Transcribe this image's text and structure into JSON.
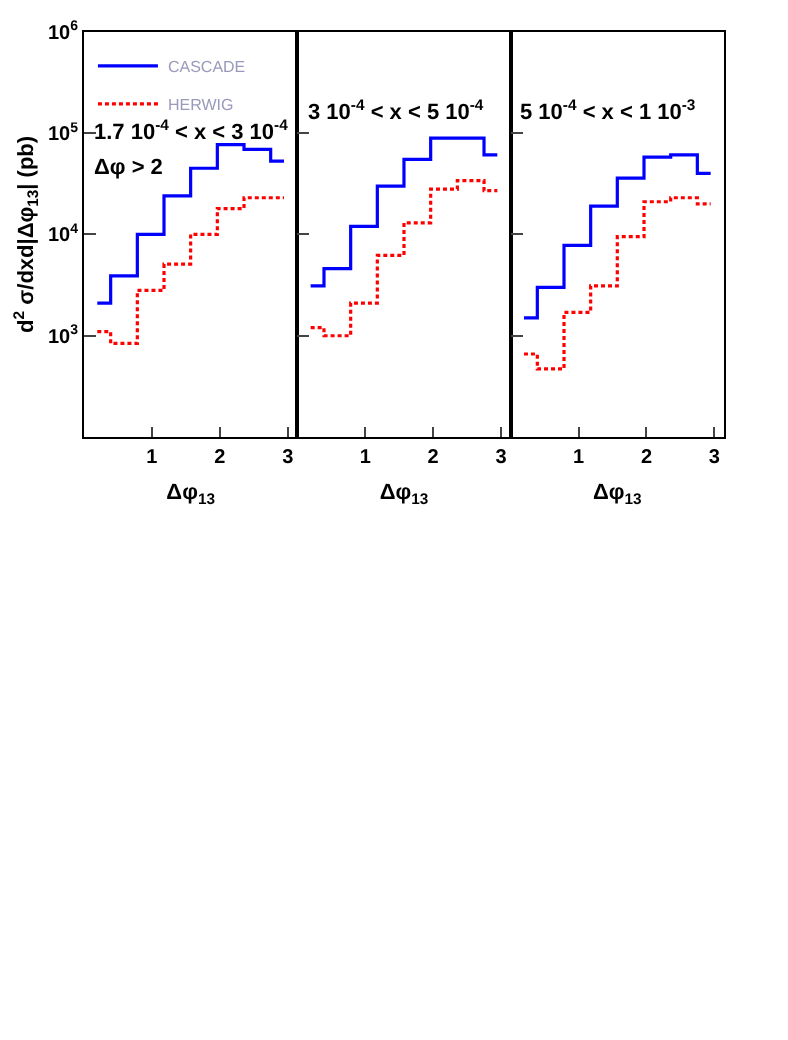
{
  "chart_data": [
    {
      "type": "step",
      "ylabel": "d$^{2}$ σ/dxd|Δφ$_{13}$| (pb)",
      "xlabel": "Δφ$_{13}$",
      "log": "y",
      "legend": "top left",
      "marker": "none",
      "x": [
        0.196,
        0.589,
        0.982,
        1.374,
        1.767,
        2.16,
        2.553,
        2.945
      ],
      "xlim": [
        0,
        3.1416
      ],
      "xticks": [
        1,
        2,
        3
      ],
      "ylim": [
        100,
        1000000
      ],
      "yticks": [
        {
          "value": 1000,
          "label": "10$^{3}$"
        },
        {
          "value": 10000,
          "label": "10$^{4}$"
        },
        {
          "value": 100000,
          "label": "10$^{5}$"
        },
        {
          "value": 1000000,
          "label": "10$^{6}$"
        }
      ],
      "annotations": [
        "1.7 10$^{-4}$ < x < 3 10$^{-4}$",
        "Δφ > 2"
      ],
      "series": [
        {
          "name": "CASCADE",
          "color": "#0000ff",
          "line_style": "solid",
          "values": [
            2100,
            3900,
            10000,
            24000,
            45000,
            77000,
            69000,
            53000
          ]
        },
        {
          "name": "HERWIG",
          "color": "#ff0000",
          "line_style": "dotted",
          "values": [
            1100,
            840,
            2800,
            5100,
            10000,
            18000,
            23000,
            23000
          ]
        }
      ]
    },
    {
      "type": "step",
      "xlabel": "Δφ$_{13}$",
      "log": "y",
      "marker": "none",
      "tick_labels": "x",
      "x": [
        0.196,
        0.589,
        0.982,
        1.374,
        1.767,
        2.16,
        2.553,
        2.945
      ],
      "xlim": [
        0,
        3.1416
      ],
      "xticks": [
        1,
        2,
        3
      ],
      "ylim": [
        100,
        1000000
      ],
      "yticks": [
        {
          "value": 1000,
          "label": "10$^{3}$"
        },
        {
          "value": 10000,
          "label": "10$^{4}$"
        },
        {
          "value": 100000,
          "label": "10$^{5}$"
        },
        {
          "value": 1000000,
          "label": "10$^{6}$"
        }
      ],
      "annotations": [
        "3 10$^{-4}$ < x < 5 10$^{-4}$"
      ],
      "series": [
        {
          "color": "#0000ff",
          "line_style": "solid",
          "values": [
            3100,
            4600,
            12000,
            30000,
            55000,
            89000,
            89000,
            61000
          ]
        },
        {
          "color": "#ff0000",
          "line_style": "dotted",
          "values": [
            1200,
            1000,
            2100,
            6200,
            13000,
            28000,
            34000,
            27000
          ]
        }
      ]
    },
    {
      "type": "step",
      "xlabel": "Δφ$_{13}$",
      "log": "y",
      "marker": "none",
      "tick_labels": "x",
      "x": [
        0.196,
        0.589,
        0.982,
        1.374,
        1.767,
        2.16,
        2.553,
        2.945
      ],
      "xlim": [
        0,
        3.1416
      ],
      "xticks": [
        1,
        2,
        3
      ],
      "ylim": [
        100,
        1000000
      ],
      "yticks": [
        {
          "value": 1000,
          "label": "10$^{3}$"
        },
        {
          "value": 10000,
          "label": "10$^{4}$"
        },
        {
          "value": 100000,
          "label": "10$^{5}$"
        },
        {
          "value": 1000000,
          "label": "10$^{6}$"
        }
      ],
      "annotations": [
        "5 10$^{-4}$ < x < 1 10$^{-3}$"
      ],
      "series": [
        {
          "color": "#0000ff",
          "line_style": "solid",
          "values": [
            1500,
            3000,
            7800,
            19000,
            36000,
            58000,
            61000,
            40000
          ]
        },
        {
          "color": "#ff0000",
          "line_style": "dotted",
          "values": [
            660,
            470,
            1700,
            3100,
            9500,
            21000,
            23000,
            20000
          ]
        }
      ]
    }
  ]
}
